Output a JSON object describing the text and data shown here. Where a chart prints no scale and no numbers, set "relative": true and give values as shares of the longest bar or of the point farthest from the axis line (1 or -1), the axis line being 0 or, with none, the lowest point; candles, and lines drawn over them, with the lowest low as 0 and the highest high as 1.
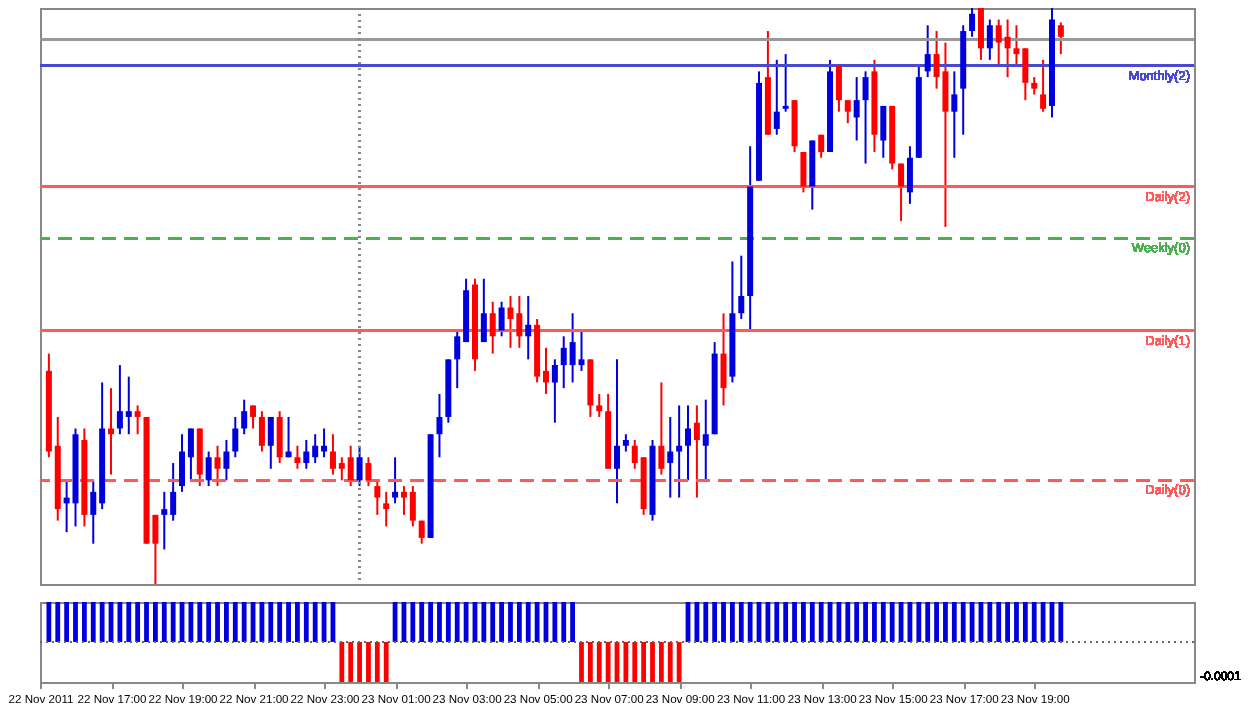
{
  "chart_data": [
    {
      "type": "candlestick",
      "relative": true,
      "tick_labels": false,
      "xlim": [
        "2011-11-22T15:00",
        "2011-11-23T23:30"
      ],
      "x": [
        "2011-11-22T15:15",
        "2011-11-22T15:30",
        "2011-11-22T15:45",
        "2011-11-22T16:00",
        "2011-11-22T16:15",
        "2011-11-22T16:30",
        "2011-11-22T16:45",
        "2011-11-22T17:00",
        "2011-11-22T17:15",
        "2011-11-22T17:30",
        "2011-11-22T17:45",
        "2011-11-22T18:00",
        "2011-11-22T18:15",
        "2011-11-22T18:30",
        "2011-11-22T18:45",
        "2011-11-22T19:00",
        "2011-11-22T19:15",
        "2011-11-22T19:30",
        "2011-11-22T19:45",
        "2011-11-22T20:00",
        "2011-11-22T20:15",
        "2011-11-22T20:30",
        "2011-11-22T20:45",
        "2011-11-22T21:00",
        "2011-11-22T21:15",
        "2011-11-22T21:30",
        "2011-11-22T21:45",
        "2011-11-22T22:00",
        "2011-11-22T22:15",
        "2011-11-22T22:30",
        "2011-11-22T22:45",
        "2011-11-22T23:00",
        "2011-11-22T23:15",
        "2011-11-22T23:30",
        "2011-11-22T23:45",
        "2011-11-23T00:00",
        "2011-11-23T00:15",
        "2011-11-23T00:30",
        "2011-11-23T00:45",
        "2011-11-23T01:00",
        "2011-11-23T01:15",
        "2011-11-23T01:30",
        "2011-11-23T01:45",
        "2011-11-23T02:00",
        "2011-11-23T02:15",
        "2011-11-23T02:30",
        "2011-11-23T02:45",
        "2011-11-23T03:00",
        "2011-11-23T03:15",
        "2011-11-23T03:30",
        "2011-11-23T03:45",
        "2011-11-23T04:00",
        "2011-11-23T04:15",
        "2011-11-23T04:30",
        "2011-11-23T04:45",
        "2011-11-23T05:00",
        "2011-11-23T05:15",
        "2011-11-23T05:30",
        "2011-11-23T05:45",
        "2011-11-23T06:00",
        "2011-11-23T06:15",
        "2011-11-23T06:30",
        "2011-11-23T06:45",
        "2011-11-23T07:00",
        "2011-11-23T07:15",
        "2011-11-23T07:30",
        "2011-11-23T07:45",
        "2011-11-23T08:00",
        "2011-11-23T08:15",
        "2011-11-23T08:30",
        "2011-11-23T08:45",
        "2011-11-23T09:00",
        "2011-11-23T09:15",
        "2011-11-23T09:30",
        "2011-11-23T09:45",
        "2011-11-23T10:00",
        "2011-11-23T10:15",
        "2011-11-23T10:30",
        "2011-11-23T10:45",
        "2011-11-23T11:00",
        "2011-11-23T11:15",
        "2011-11-23T11:30",
        "2011-11-23T11:45",
        "2011-11-23T12:00",
        "2011-11-23T12:15",
        "2011-11-23T12:30",
        "2011-11-23T12:45",
        "2011-11-23T13:00",
        "2011-11-23T13:15",
        "2011-11-23T13:30",
        "2011-11-23T13:45",
        "2011-11-23T14:00",
        "2011-11-23T14:15",
        "2011-11-23T14:30",
        "2011-11-23T14:45",
        "2011-11-23T15:00",
        "2011-11-23T15:15",
        "2011-11-23T15:30",
        "2011-11-23T15:45",
        "2011-11-23T16:00",
        "2011-11-23T16:15",
        "2011-11-23T16:30",
        "2011-11-23T16:45",
        "2011-11-23T17:00",
        "2011-11-23T17:15",
        "2011-11-23T17:30",
        "2011-11-23T17:45",
        "2011-11-23T18:00",
        "2011-11-23T18:15",
        "2011-11-23T18:30",
        "2011-11-23T18:45",
        "2011-11-23T19:00",
        "2011-11-23T19:15",
        "2011-11-23T19:30",
        "2011-11-23T19:45"
      ],
      "ohlc": [
        [
          0.37,
          0.4,
          0.22,
          0.23
        ],
        [
          0.24,
          0.29,
          0.11,
          0.13
        ],
        [
          0.14,
          0.18,
          0.09,
          0.15
        ],
        [
          0.14,
          0.27,
          0.1,
          0.26
        ],
        [
          0.25,
          0.27,
          0.1,
          0.12
        ],
        [
          0.12,
          0.18,
          0.07,
          0.16
        ],
        [
          0.14,
          0.35,
          0.13,
          0.27
        ],
        [
          0.27,
          0.34,
          0.19,
          0.26
        ],
        [
          0.27,
          0.38,
          0.26,
          0.3
        ],
        [
          0.29,
          0.36,
          0.26,
          0.3
        ],
        [
          0.3,
          0.31,
          0.26,
          0.29
        ],
        [
          0.29,
          0.29,
          0.07,
          0.07
        ],
        [
          0.12,
          0.12,
          0,
          0.07
        ],
        [
          0.12,
          0.16,
          0.06,
          0.13
        ],
        [
          0.12,
          0.21,
          0.11,
          0.16
        ],
        [
          0.17,
          0.26,
          0.16,
          0.23
        ],
        [
          0.22,
          0.27,
          0.18,
          0.27
        ],
        [
          0.27,
          0.27,
          0.17,
          0.19
        ],
        [
          0.18,
          0.23,
          0.17,
          0.22
        ],
        [
          0.22,
          0.24,
          0.17,
          0.2
        ],
        [
          0.2,
          0.25,
          0.18,
          0.23
        ],
        [
          0.23,
          0.29,
          0.22,
          0.27
        ],
        [
          0.27,
          0.32,
          0.26,
          0.3
        ],
        [
          0.31,
          0.31,
          0.27,
          0.29
        ],
        [
          0.29,
          0.3,
          0.23,
          0.24
        ],
        [
          0.24,
          0.29,
          0.2,
          0.29
        ],
        [
          0.29,
          0.3,
          0.21,
          0.22
        ],
        [
          0.22,
          0.29,
          0.22,
          0.23
        ],
        [
          0.22,
          0.24,
          0.2,
          0.21
        ],
        [
          0.21,
          0.25,
          0.2,
          0.23
        ],
        [
          0.22,
          0.26,
          0.21,
          0.24
        ],
        [
          0.23,
          0.27,
          0.22,
          0.24
        ],
        [
          0.23,
          0.26,
          0.19,
          0.2
        ],
        [
          0.21,
          0.22,
          0.18,
          0.2
        ],
        [
          0.22,
          0.24,
          0.17,
          0.18
        ],
        [
          0.18,
          0.24,
          0.17,
          0.22
        ],
        [
          0.21,
          0.22,
          0.17,
          0.18
        ],
        [
          0.17,
          0.18,
          0.12,
          0.15
        ],
        [
          0.14,
          0.16,
          0.1,
          0.13
        ],
        [
          0.15,
          0.22,
          0.14,
          0.16
        ],
        [
          0.16,
          0.17,
          0.12,
          0.15
        ],
        [
          0.16,
          0.17,
          0.1,
          0.11
        ],
        [
          0.11,
          0.11,
          0.07,
          0.08
        ],
        [
          0.08,
          0.26,
          0.08,
          0.26
        ],
        [
          0.26,
          0.33,
          0.22,
          0.29
        ],
        [
          0.29,
          0.39,
          0.28,
          0.39
        ],
        [
          0.39,
          0.44,
          0.34,
          0.43
        ],
        [
          0.42,
          0.53,
          0.42,
          0.51
        ],
        [
          0.52,
          0.53,
          0.37,
          0.39
        ],
        [
          0.42,
          0.53,
          0.42,
          0.47
        ],
        [
          0.47,
          0.49,
          0.4,
          0.43
        ],
        [
          0.44,
          0.49,
          0.43,
          0.48
        ],
        [
          0.48,
          0.5,
          0.41,
          0.46
        ],
        [
          0.47,
          0.5,
          0.41,
          0.43
        ],
        [
          0.43,
          0.5,
          0.39,
          0.45
        ],
        [
          0.45,
          0.46,
          0.35,
          0.36
        ],
        [
          0.37,
          0.41,
          0.33,
          0.35
        ],
        [
          0.35,
          0.39,
          0.28,
          0.38
        ],
        [
          0.38,
          0.43,
          0.34,
          0.41
        ],
        [
          0.38,
          0.47,
          0.35,
          0.42
        ],
        [
          0.38,
          0.44,
          0.37,
          0.39
        ],
        [
          0.39,
          0.39,
          0.29,
          0.31
        ],
        [
          0.31,
          0.33,
          0.29,
          0.3
        ],
        [
          0.3,
          0.33,
          0.2,
          0.2
        ],
        [
          0.2,
          0.39,
          0.14,
          0.24
        ],
        [
          0.24,
          0.26,
          0.23,
          0.25
        ],
        [
          0.24,
          0.25,
          0.2,
          0.21
        ],
        [
          0.22,
          0.22,
          0.12,
          0.13
        ],
        [
          0.12,
          0.25,
          0.11,
          0.24
        ],
        [
          0.24,
          0.35,
          0.19,
          0.2
        ],
        [
          0.21,
          0.29,
          0.15,
          0.23
        ],
        [
          0.23,
          0.31,
          0.15,
          0.24
        ],
        [
          0.24,
          0.31,
          0.18,
          0.27
        ],
        [
          0.28,
          0.31,
          0.15,
          0.25
        ],
        [
          0.24,
          0.32,
          0.18,
          0.26
        ],
        [
          0.26,
          0.42,
          0.26,
          0.4
        ],
        [
          0.4,
          0.47,
          0.31,
          0.34
        ],
        [
          0.36,
          0.56,
          0.35,
          0.47
        ],
        [
          0.47,
          0.57,
          0.46,
          0.5
        ],
        [
          0.5,
          0.76,
          0.44,
          0.69
        ],
        [
          0.7,
          0.89,
          0.7,
          0.87
        ],
        [
          0.88,
          0.96,
          0.78,
          0.78
        ],
        [
          0.79,
          0.91,
          0.78,
          0.82
        ],
        [
          0.825,
          0.92,
          0.82,
          0.83
        ],
        [
          0.84,
          0.84,
          0.75,
          0.76
        ],
        [
          0.75,
          0.75,
          0.68,
          0.69
        ],
        [
          0.69,
          0.77,
          0.65,
          0.77
        ],
        [
          0.78,
          0.78,
          0.74,
          0.75
        ],
        [
          0.75,
          0.91,
          0.75,
          0.89
        ],
        [
          0.9,
          0.9,
          0.82,
          0.84
        ],
        [
          0.84,
          0.84,
          0.8,
          0.82
        ],
        [
          0.81,
          0.88,
          0.77,
          0.84
        ],
        [
          0.84,
          0.89,
          0.73,
          0.88
        ],
        [
          0.89,
          0.91,
          0.75,
          0.78
        ],
        [
          0.77,
          0.83,
          0.74,
          0.83
        ],
        [
          0.83,
          0.83,
          0.72,
          0.73
        ],
        [
          0.73,
          0.73,
          0.63,
          0.69
        ],
        [
          0.68,
          0.76,
          0.66,
          0.74
        ],
        [
          0.74,
          0.9,
          0.74,
          0.88
        ],
        [
          0.89,
          0.97,
          0.88,
          0.92
        ],
        [
          0.92,
          0.96,
          0.86,
          0.88
        ],
        [
          0.89,
          0.94,
          0.62,
          0.82
        ],
        [
          0.82,
          0.89,
          0.74,
          0.85
        ],
        [
          0.86,
          0.97,
          0.78,
          0.96
        ],
        [
          0.96,
          1,
          0.95,
          0.99
        ],
        [
          1,
          1,
          0.91,
          0.93
        ],
        [
          0.93,
          0.98,
          0.91,
          0.97
        ],
        [
          0.97,
          0.98,
          0.9,
          0.94
        ],
        [
          0.95,
          0.98,
          0.88,
          0.93
        ],
        [
          0.93,
          0.97,
          0.9,
          0.92
        ],
        [
          0.93,
          0.93,
          0.84,
          0.87
        ],
        [
          0.87,
          0.88,
          0.85,
          0.86
        ],
        [
          0.85,
          0.91,
          0.82,
          0.825
        ],
        [
          0.83,
          1,
          0.81,
          0.98
        ],
        [
          0.97,
          0.975,
          0.92,
          0.95
        ]
      ],
      "colors": [
        "#ff0000",
        "#ff0000",
        "#0000dd",
        "#0000dd",
        "#ff0000",
        "#0000dd",
        "#0000dd",
        "#ff0000",
        "#0000dd",
        "#0000dd",
        "#ff0000",
        "#ff0000",
        "#ff0000",
        "#0000dd",
        "#0000dd",
        "#0000dd",
        "#0000dd",
        "#ff0000",
        "#0000dd",
        "#ff0000",
        "#0000dd",
        "#0000dd",
        "#0000dd",
        "#ff0000",
        "#ff0000",
        "#0000dd",
        "#ff0000",
        "#0000dd",
        "#ff0000",
        "#0000dd",
        "#0000dd",
        "#0000dd",
        "#ff0000",
        "#ff0000",
        "#ff0000",
        "#0000dd",
        "#ff0000",
        "#ff0000",
        "#ff0000",
        "#0000dd",
        "#ff0000",
        "#ff0000",
        "#ff0000",
        "#0000dd",
        "#0000dd",
        "#0000dd",
        "#0000dd",
        "#0000dd",
        "#ff0000",
        "#0000dd",
        "#ff0000",
        "#0000dd",
        "#ff0000",
        "#ff0000",
        "#0000dd",
        "#ff0000",
        "#ff0000",
        "#0000dd",
        "#0000dd",
        "#0000dd",
        "#0000dd",
        "#ff0000",
        "#ff0000",
        "#ff0000",
        "#0000dd",
        "#0000dd",
        "#ff0000",
        "#ff0000",
        "#0000dd",
        "#ff0000",
        "#0000dd",
        "#0000dd",
        "#0000dd",
        "#ff0000",
        "#0000dd",
        "#0000dd",
        "#ff0000",
        "#0000dd",
        "#0000dd",
        "#0000dd",
        "#0000dd",
        "#ff0000",
        "#0000dd",
        "#0000dd",
        "#ff0000",
        "#ff0000",
        "#0000dd",
        "#ff0000",
        "#0000dd",
        "#ff0000",
        "#ff0000",
        "#0000dd",
        "#0000dd",
        "#ff0000",
        "#0000dd",
        "#ff0000",
        "#ff0000",
        "#0000dd",
        "#0000dd",
        "#0000dd",
        "#ff0000",
        "#ff0000",
        "#0000dd",
        "#0000dd",
        "#0000dd",
        "#ff0000",
        "#0000dd",
        "#ff0000",
        "#ff0000",
        "#ff0000",
        "#ff0000",
        "#ff0000",
        "#ff0000",
        "#0000dd",
        "#ff0000"
      ],
      "ref_lines": [
        {
          "axis": "y",
          "value": 0.945,
          "label": null,
          "color": "#999999",
          "line_style": "solid"
        },
        {
          "axis": "y",
          "value": 0.9,
          "label": "Monthly(2)",
          "color": "#4a4ad0",
          "line_style": "solid"
        },
        {
          "axis": "y",
          "value": 0.69,
          "label": "Daily(2)",
          "color": "#ff5a5a",
          "line_style": "solid"
        },
        {
          "axis": "y",
          "value": 0.6,
          "label": "Weekly(0)",
          "color": "#4caf50",
          "line_style": "dashed"
        },
        {
          "axis": "y",
          "value": 0.44,
          "label": "Daily(1)",
          "color": "#ff5a5a",
          "line_style": "solid"
        },
        {
          "axis": "y",
          "value": 0.18,
          "label": "Daily(0)",
          "color": "#ff5a5a",
          "line_style": "dashed"
        },
        {
          "axis": "x",
          "value": "2011-11-23T00:00",
          "label": null,
          "color": "#888888",
          "line_style": "dotted"
        }
      ]
    },
    {
      "type": "bar",
      "relative": true,
      "tick_labels": "x",
      "xlim": [
        "2011-11-22T15:00",
        "2011-11-23T23:30"
      ],
      "x": [
        "2011-11-22T15:15",
        "2011-11-22T15:30",
        "2011-11-22T15:45",
        "2011-11-22T16:00",
        "2011-11-22T16:15",
        "2011-11-22T16:30",
        "2011-11-22T16:45",
        "2011-11-22T17:00",
        "2011-11-22T17:15",
        "2011-11-22T17:30",
        "2011-11-22T17:45",
        "2011-11-22T18:00",
        "2011-11-22T18:15",
        "2011-11-22T18:30",
        "2011-11-22T18:45",
        "2011-11-22T19:00",
        "2011-11-22T19:15",
        "2011-11-22T19:30",
        "2011-11-22T19:45",
        "2011-11-22T20:00",
        "2011-11-22T20:15",
        "2011-11-22T20:30",
        "2011-11-22T20:45",
        "2011-11-22T21:00",
        "2011-11-22T21:15",
        "2011-11-22T21:30",
        "2011-11-22T21:45",
        "2011-11-22T22:00",
        "2011-11-22T22:15",
        "2011-11-22T22:30",
        "2011-11-22T22:45",
        "2011-11-22T23:00",
        "2011-11-22T23:15",
        "2011-11-22T23:30",
        "2011-11-22T23:45",
        "2011-11-23T00:00",
        "2011-11-23T00:15",
        "2011-11-23T00:30",
        "2011-11-23T00:45",
        "2011-11-23T01:00",
        "2011-11-23T01:15",
        "2011-11-23T01:30",
        "2011-11-23T01:45",
        "2011-11-23T02:00",
        "2011-11-23T02:15",
        "2011-11-23T02:30",
        "2011-11-23T02:45",
        "2011-11-23T03:00",
        "2011-11-23T03:15",
        "2011-11-23T03:30",
        "2011-11-23T03:45",
        "2011-11-23T04:00",
        "2011-11-23T04:15",
        "2011-11-23T04:30",
        "2011-11-23T04:45",
        "2011-11-23T05:00",
        "2011-11-23T05:15",
        "2011-11-23T05:30",
        "2011-11-23T05:45",
        "2011-11-23T06:00",
        "2011-11-23T06:15",
        "2011-11-23T06:30",
        "2011-11-23T06:45",
        "2011-11-23T07:00",
        "2011-11-23T07:15",
        "2011-11-23T07:30",
        "2011-11-23T07:45",
        "2011-11-23T08:00",
        "2011-11-23T08:15",
        "2011-11-23T08:30",
        "2011-11-23T08:45",
        "2011-11-23T09:00",
        "2011-11-23T09:15",
        "2011-11-23T09:30",
        "2011-11-23T09:45",
        "2011-11-23T10:00",
        "2011-11-23T10:15",
        "2011-11-23T10:30",
        "2011-11-23T10:45",
        "2011-11-23T11:00",
        "2011-11-23T11:15",
        "2011-11-23T11:30",
        "2011-11-23T11:45",
        "2011-11-23T12:00",
        "2011-11-23T12:15",
        "2011-11-23T12:30",
        "2011-11-23T12:45",
        "2011-11-23T13:00",
        "2011-11-23T13:15",
        "2011-11-23T13:30",
        "2011-11-23T13:45",
        "2011-11-23T14:00",
        "2011-11-23T14:15",
        "2011-11-23T14:30",
        "2011-11-23T14:45",
        "2011-11-23T15:00",
        "2011-11-23T15:15",
        "2011-11-23T15:30",
        "2011-11-23T15:45",
        "2011-11-23T16:00",
        "2011-11-23T16:15",
        "2011-11-23T16:30",
        "2011-11-23T16:45",
        "2011-11-23T17:00",
        "2011-11-23T17:15",
        "2011-11-23T17:30",
        "2011-11-23T17:45",
        "2011-11-23T18:00",
        "2011-11-23T18:15",
        "2011-11-23T18:30",
        "2011-11-23T18:45",
        "2011-11-23T19:00",
        "2011-11-23T19:15",
        "2011-11-23T19:30",
        "2011-11-23T19:45"
      ],
      "values": [
        1,
        1,
        1,
        1,
        1,
        1,
        1,
        1,
        1,
        1,
        1,
        1,
        1,
        1,
        1,
        1,
        1,
        1,
        1,
        1,
        1,
        1,
        1,
        1,
        1,
        1,
        1,
        1,
        1,
        1,
        1,
        1,
        1,
        -1,
        -1,
        -1,
        -1,
        -1,
        -1,
        1,
        1,
        1,
        1,
        1,
        1,
        1,
        1,
        1,
        1,
        1,
        1,
        1,
        1,
        1,
        1,
        1,
        1,
        1,
        1,
        1,
        -1,
        -1,
        -1,
        -1,
        -1,
        -1,
        -1,
        -1,
        -1,
        -1,
        -1,
        -1,
        1,
        1,
        1,
        1,
        1,
        1,
        1,
        1,
        1,
        1,
        1,
        1,
        1,
        1,
        1,
        1,
        1,
        1,
        1,
        1,
        1,
        1,
        1,
        1,
        1,
        1,
        1,
        1,
        1,
        1,
        1,
        1,
        1,
        1,
        1,
        1,
        1,
        1,
        1,
        1,
        1,
        1,
        1
      ],
      "colors": [
        "#0000dd",
        "#0000dd",
        "#0000dd",
        "#0000dd",
        "#0000dd",
        "#0000dd",
        "#0000dd",
        "#0000dd",
        "#0000dd",
        "#0000dd",
        "#0000dd",
        "#0000dd",
        "#0000dd",
        "#0000dd",
        "#0000dd",
        "#0000dd",
        "#0000dd",
        "#0000dd",
        "#0000dd",
        "#0000dd",
        "#0000dd",
        "#0000dd",
        "#0000dd",
        "#0000dd",
        "#0000dd",
        "#0000dd",
        "#0000dd",
        "#0000dd",
        "#0000dd",
        "#0000dd",
        "#0000dd",
        "#0000dd",
        "#0000dd",
        "#ff0000",
        "#ff0000",
        "#ff0000",
        "#ff0000",
        "#ff0000",
        "#ff0000",
        "#0000dd",
        "#0000dd",
        "#0000dd",
        "#0000dd",
        "#0000dd",
        "#0000dd",
        "#0000dd",
        "#0000dd",
        "#0000dd",
        "#0000dd",
        "#0000dd",
        "#0000dd",
        "#0000dd",
        "#0000dd",
        "#0000dd",
        "#0000dd",
        "#0000dd",
        "#0000dd",
        "#0000dd",
        "#0000dd",
        "#0000dd",
        "#ff0000",
        "#ff0000",
        "#ff0000",
        "#ff0000",
        "#ff0000",
        "#ff0000",
        "#ff0000",
        "#ff0000",
        "#ff0000",
        "#ff0000",
        "#ff0000",
        "#ff0000",
        "#0000dd",
        "#0000dd",
        "#0000dd",
        "#0000dd",
        "#0000dd",
        "#0000dd",
        "#0000dd",
        "#0000dd",
        "#0000dd",
        "#0000dd",
        "#0000dd",
        "#0000dd",
        "#0000dd",
        "#0000dd",
        "#0000dd",
        "#0000dd",
        "#0000dd",
        "#0000dd",
        "#0000dd",
        "#0000dd",
        "#0000dd",
        "#0000dd",
        "#0000dd",
        "#0000dd",
        "#0000dd",
        "#0000dd",
        "#0000dd",
        "#0000dd",
        "#0000dd",
        "#0000dd",
        "#0000dd",
        "#0000dd",
        "#0000dd",
        "#0000dd",
        "#0000dd",
        "#0000dd",
        "#0000dd",
        "#0000dd",
        "#0000dd",
        "#0000dd",
        "#0000dd",
        "#0000dd",
        "#0000dd"
      ],
      "xticks": [
        {
          "value": "2011-11-22T15:00",
          "label": "22 Nov 2011"
        },
        {
          "value": "2011-11-22T17:00",
          "label": "22 Nov 17:00"
        },
        {
          "value": "2011-11-22T19:00",
          "label": "22 Nov 19:00"
        },
        {
          "value": "2011-11-22T21:00",
          "label": "22 Nov 21:00"
        },
        {
          "value": "2011-11-22T23:00",
          "label": "22 Nov 23:00"
        },
        {
          "value": "2011-11-23T01:00",
          "label": "23 Nov 01:00"
        },
        {
          "value": "2011-11-23T03:00",
          "label": "23 Nov 03:00"
        },
        {
          "value": "2011-11-23T05:00",
          "label": "23 Nov 05:00"
        },
        {
          "value": "2011-11-23T07:00",
          "label": "23 Nov 07:00"
        },
        {
          "value": "2011-11-23T09:00",
          "label": "23 Nov 09:00"
        },
        {
          "value": "2011-11-23T11:00",
          "label": "23 Nov 11:00"
        },
        {
          "value": "2011-11-23T13:00",
          "label": "23 Nov 13:00"
        },
        {
          "value": "2011-11-23T15:00",
          "label": "23 Nov 15:00"
        },
        {
          "value": "2011-11-23T17:00",
          "label": "23 Nov 17:00"
        },
        {
          "value": "2011-11-23T19:00",
          "label": "23 Nov 19:00"
        }
      ],
      "ref_lines": [
        {
          "axis": "y",
          "value": 0,
          "label": null,
          "color": "#666666",
          "line_style": "dotted"
        }
      ],
      "annotations": [
        "-0.0001"
      ]
    }
  ]
}
